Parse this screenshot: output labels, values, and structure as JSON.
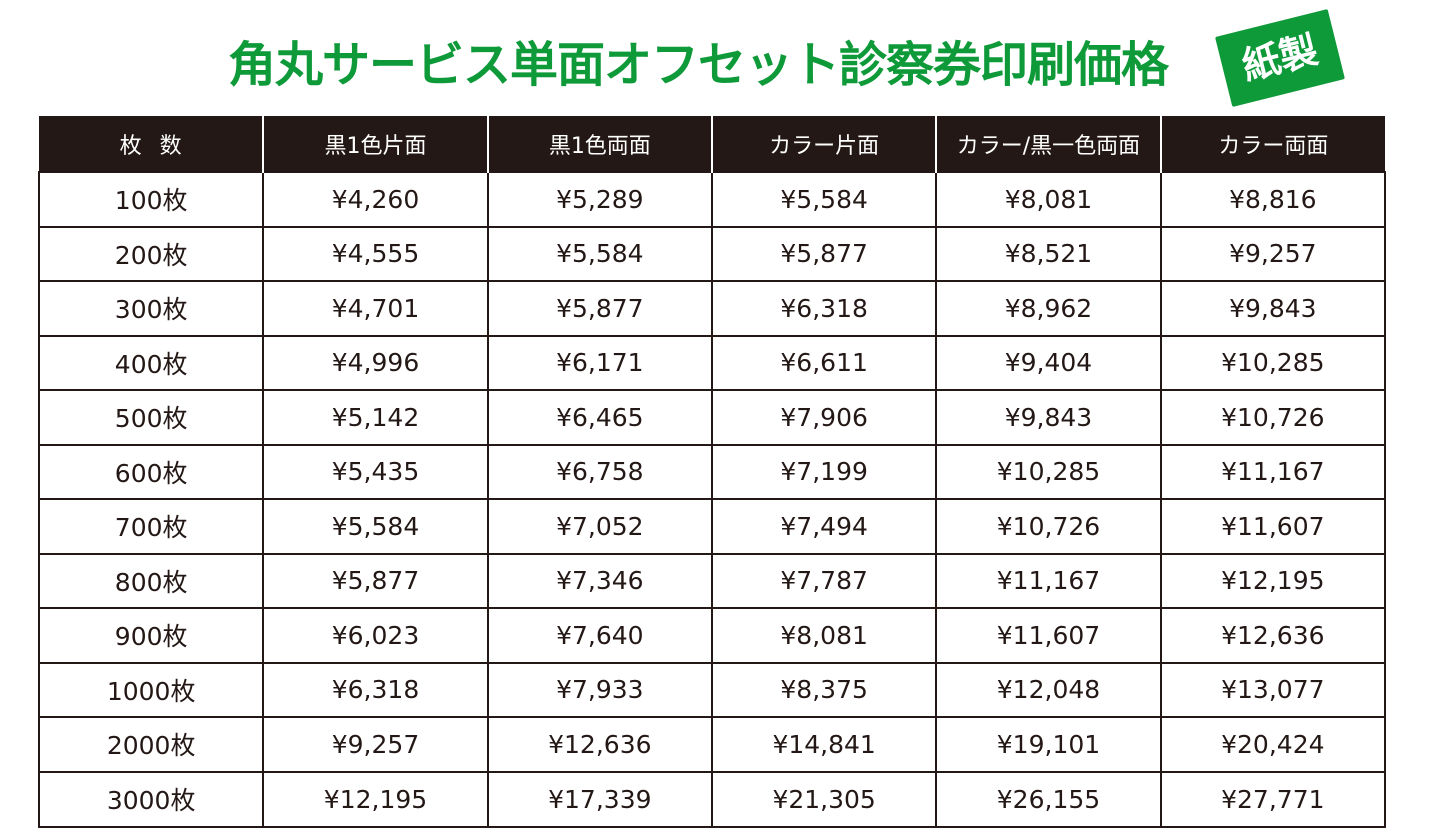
{
  "title": "角丸サービス単面オフセット診察券印刷価格",
  "badge": "紙製",
  "colors": {
    "title_green": "#0f9a3a",
    "header_bg": "#231815",
    "border": "#231815"
  },
  "table": {
    "headers": [
      "枚数",
      "黒1色片面",
      "黒1色両面",
      "カラー片面",
      "カラー/黒一色両面",
      "カラー両面"
    ],
    "rows": [
      [
        "100枚",
        "¥4,260",
        "¥5,289",
        "¥5,584",
        "¥8,081",
        "¥8,816"
      ],
      [
        "200枚",
        "¥4,555",
        "¥5,584",
        "¥5,877",
        "¥8,521",
        "¥9,257"
      ],
      [
        "300枚",
        "¥4,701",
        "¥5,877",
        "¥6,318",
        "¥8,962",
        "¥9,843"
      ],
      [
        "400枚",
        "¥4,996",
        "¥6,171",
        "¥6,611",
        "¥9,404",
        "¥10,285"
      ],
      [
        "500枚",
        "¥5,142",
        "¥6,465",
        "¥7,906",
        "¥9,843",
        "¥10,726"
      ],
      [
        "600枚",
        "¥5,435",
        "¥6,758",
        "¥7,199",
        "¥10,285",
        "¥11,167"
      ],
      [
        "700枚",
        "¥5,584",
        "¥7,052",
        "¥7,494",
        "¥10,726",
        "¥11,607"
      ],
      [
        "800枚",
        "¥5,877",
        "¥7,346",
        "¥7,787",
        "¥11,167",
        "¥12,195"
      ],
      [
        "900枚",
        "¥6,023",
        "¥7,640",
        "¥8,081",
        "¥11,607",
        "¥12,636"
      ],
      [
        "1000枚",
        "¥6,318",
        "¥7,933",
        "¥8,375",
        "¥12,048",
        "¥13,077"
      ],
      [
        "2000枚",
        "¥9,257",
        "¥12,636",
        "¥14,841",
        "¥19,101",
        "¥20,424"
      ],
      [
        "3000枚",
        "¥12,195",
        "¥17,339",
        "¥21,305",
        "¥26,155",
        "¥27,771"
      ]
    ]
  }
}
